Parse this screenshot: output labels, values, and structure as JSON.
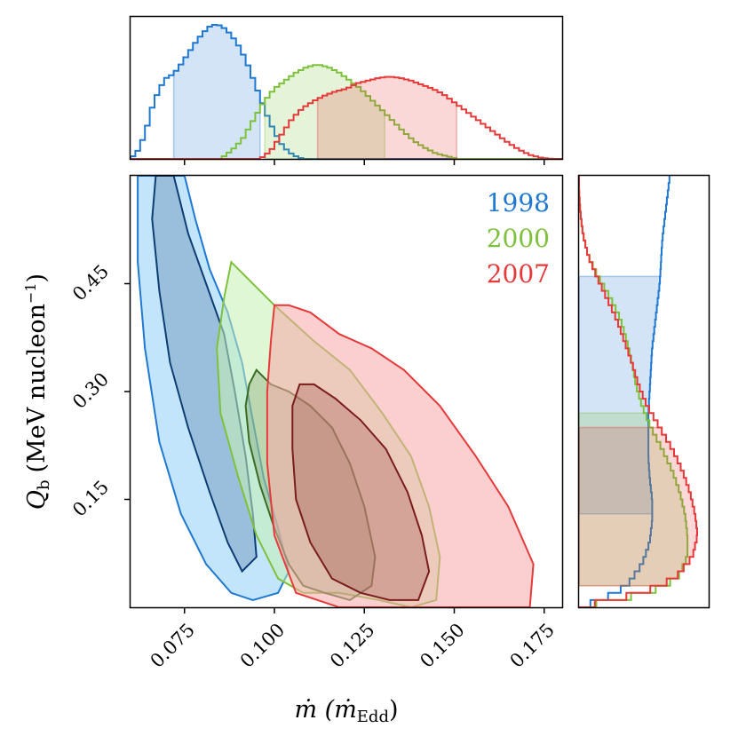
{
  "chart_data": {
    "type": "corner_contour",
    "xlabel": "ṁ (ṁ",
    "xlabel_sub": "Edd",
    "xlabel_close": ")",
    "ylabel": "Q",
    "ylabel_sub": "b",
    "ylabel_unit": "(MeV nucleon",
    "ylabel_sup": "−1",
    "ylabel_close": ")",
    "xlim": [
      0.06,
      0.18
    ],
    "ylim": [
      0.0,
      0.6
    ],
    "xticks": [
      0.075,
      0.1,
      0.125,
      0.15,
      0.175
    ],
    "xtick_labels": [
      "0.075",
      "0.100",
      "0.125",
      "0.150",
      "0.175"
    ],
    "yticks": [
      0.15,
      0.3,
      0.45
    ],
    "ytick_labels": [
      "0.15",
      "0.30",
      "0.45"
    ],
    "series": [
      {
        "name": "1998",
        "color": "#1f78d1",
        "fill": "#8fd0f8",
        "inner_edge": "#0d3d73",
        "x_hist": [
          [
            0.06,
            0.0
          ],
          [
            0.062,
            0.06
          ],
          [
            0.064,
            0.18
          ],
          [
            0.066,
            0.38
          ],
          [
            0.068,
            0.52
          ],
          [
            0.07,
            0.6
          ],
          [
            0.072,
            0.63
          ],
          [
            0.074,
            0.7
          ],
          [
            0.076,
            0.78
          ],
          [
            0.078,
            0.86
          ],
          [
            0.08,
            0.93
          ],
          [
            0.082,
            0.98
          ],
          [
            0.084,
            1.0
          ],
          [
            0.086,
            0.97
          ],
          [
            0.088,
            0.92
          ],
          [
            0.09,
            0.84
          ],
          [
            0.092,
            0.74
          ],
          [
            0.094,
            0.6
          ],
          [
            0.096,
            0.46
          ],
          [
            0.098,
            0.32
          ],
          [
            0.1,
            0.2
          ],
          [
            0.102,
            0.11
          ],
          [
            0.104,
            0.05
          ],
          [
            0.106,
            0.02
          ],
          [
            0.108,
            0.0
          ]
        ],
        "x_band": [
          0.072,
          0.096
        ],
        "y_hist": [
          [
            0.0,
            0.0
          ],
          [
            0.01,
            0.18
          ],
          [
            0.03,
            0.38
          ],
          [
            0.06,
            0.5
          ],
          [
            0.09,
            0.56
          ],
          [
            0.12,
            0.58
          ],
          [
            0.15,
            0.58
          ],
          [
            0.18,
            0.56
          ],
          [
            0.21,
            0.55
          ],
          [
            0.24,
            0.55
          ],
          [
            0.27,
            0.55
          ],
          [
            0.3,
            0.56
          ],
          [
            0.33,
            0.57
          ],
          [
            0.36,
            0.58
          ],
          [
            0.39,
            0.6
          ],
          [
            0.42,
            0.62
          ],
          [
            0.45,
            0.64
          ],
          [
            0.48,
            0.65
          ],
          [
            0.51,
            0.66
          ],
          [
            0.54,
            0.68
          ],
          [
            0.57,
            0.7
          ],
          [
            0.6,
            0.72
          ]
        ],
        "y_band": [
          0.127,
          0.462
        ],
        "outer": [
          [
            0.064,
            0.6
          ],
          [
            0.075,
            0.6
          ],
          [
            0.078,
            0.54
          ],
          [
            0.082,
            0.47
          ],
          [
            0.087,
            0.41
          ],
          [
            0.091,
            0.34
          ],
          [
            0.094,
            0.26
          ],
          [
            0.097,
            0.18
          ],
          [
            0.101,
            0.11
          ],
          [
            0.104,
            0.05
          ],
          [
            0.101,
            0.02
          ],
          [
            0.094,
            0.01
          ],
          [
            0.088,
            0.02
          ],
          [
            0.081,
            0.06
          ],
          [
            0.074,
            0.13
          ],
          [
            0.068,
            0.23
          ],
          [
            0.064,
            0.36
          ],
          [
            0.062,
            0.48
          ],
          [
            0.062,
            0.6
          ]
        ],
        "inner": [
          [
            0.067,
            0.6
          ],
          [
            0.072,
            0.6
          ],
          [
            0.076,
            0.52
          ],
          [
            0.081,
            0.45
          ],
          [
            0.086,
            0.38
          ],
          [
            0.089,
            0.3
          ],
          [
            0.092,
            0.21
          ],
          [
            0.094,
            0.13
          ],
          [
            0.095,
            0.07
          ],
          [
            0.091,
            0.05
          ],
          [
            0.087,
            0.09
          ],
          [
            0.082,
            0.16
          ],
          [
            0.076,
            0.25
          ],
          [
            0.071,
            0.34
          ],
          [
            0.068,
            0.44
          ],
          [
            0.066,
            0.54
          ],
          [
            0.067,
            0.6
          ]
        ]
      },
      {
        "name": "2000",
        "color": "#7ec13c",
        "fill": "#c6f0b4",
        "inner_edge": "#3b6b24",
        "x_hist": [
          [
            0.085,
            0.0
          ],
          [
            0.088,
            0.06
          ],
          [
            0.091,
            0.14
          ],
          [
            0.094,
            0.28
          ],
          [
            0.097,
            0.42
          ],
          [
            0.1,
            0.52
          ],
          [
            0.103,
            0.58
          ],
          [
            0.106,
            0.64
          ],
          [
            0.109,
            0.68
          ],
          [
            0.112,
            0.7
          ],
          [
            0.115,
            0.68
          ],
          [
            0.118,
            0.64
          ],
          [
            0.121,
            0.58
          ],
          [
            0.124,
            0.52
          ],
          [
            0.127,
            0.44
          ],
          [
            0.13,
            0.36
          ],
          [
            0.133,
            0.28
          ],
          [
            0.136,
            0.2
          ],
          [
            0.139,
            0.13
          ],
          [
            0.142,
            0.08
          ],
          [
            0.145,
            0.04
          ],
          [
            0.148,
            0.02
          ],
          [
            0.151,
            0.0
          ]
        ],
        "x_band": [
          0.097,
          0.13
        ],
        "y_hist": [
          [
            0.0,
            0.0
          ],
          [
            0.02,
            0.55
          ],
          [
            0.04,
            0.78
          ],
          [
            0.07,
            0.86
          ],
          [
            0.1,
            0.86
          ],
          [
            0.13,
            0.84
          ],
          [
            0.16,
            0.8
          ],
          [
            0.19,
            0.74
          ],
          [
            0.22,
            0.66
          ],
          [
            0.25,
            0.57
          ],
          [
            0.28,
            0.5
          ],
          [
            0.31,
            0.45
          ],
          [
            0.34,
            0.42
          ],
          [
            0.37,
            0.38
          ],
          [
            0.4,
            0.33
          ],
          [
            0.43,
            0.25
          ],
          [
            0.46,
            0.15
          ],
          [
            0.49,
            0.07
          ],
          [
            0.52,
            0.03
          ],
          [
            0.55,
            0.01
          ],
          [
            0.58,
            0.0
          ]
        ],
        "y_band": [
          0.027,
          0.27
        ],
        "outer": [
          [
            0.088,
            0.48
          ],
          [
            0.092,
            0.46
          ],
          [
            0.1,
            0.42
          ],
          [
            0.111,
            0.37
          ],
          [
            0.121,
            0.33
          ],
          [
            0.13,
            0.27
          ],
          [
            0.138,
            0.21
          ],
          [
            0.143,
            0.14
          ],
          [
            0.146,
            0.07
          ],
          [
            0.145,
            0.01
          ],
          [
            0.138,
            0.0
          ],
          [
            0.129,
            0.01
          ],
          [
            0.118,
            0.02
          ],
          [
            0.108,
            0.02
          ],
          [
            0.101,
            0.04
          ],
          [
            0.095,
            0.1
          ],
          [
            0.09,
            0.18
          ],
          [
            0.085,
            0.27
          ],
          [
            0.084,
            0.36
          ],
          [
            0.086,
            0.43
          ],
          [
            0.088,
            0.48
          ]
        ],
        "inner": [
          [
            0.095,
            0.33
          ],
          [
            0.099,
            0.31
          ],
          [
            0.104,
            0.3
          ],
          [
            0.11,
            0.28
          ],
          [
            0.116,
            0.25
          ],
          [
            0.121,
            0.2
          ],
          [
            0.125,
            0.14
          ],
          [
            0.128,
            0.07
          ],
          [
            0.127,
            0.03
          ],
          [
            0.121,
            0.01
          ],
          [
            0.114,
            0.02
          ],
          [
            0.108,
            0.03
          ],
          [
            0.104,
            0.06
          ],
          [
            0.1,
            0.11
          ],
          [
            0.096,
            0.17
          ],
          [
            0.093,
            0.23
          ],
          [
            0.092,
            0.28
          ],
          [
            0.093,
            0.31
          ],
          [
            0.095,
            0.33
          ]
        ]
      },
      {
        "name": "2007",
        "color": "#e63a3a",
        "fill": "#f7a8a8",
        "inner_edge": "#7a1d1d",
        "x_hist": [
          [
            0.096,
            0.0
          ],
          [
            0.099,
            0.06
          ],
          [
            0.102,
            0.18
          ],
          [
            0.105,
            0.3
          ],
          [
            0.108,
            0.38
          ],
          [
            0.111,
            0.43
          ],
          [
            0.114,
            0.47
          ],
          [
            0.117,
            0.5
          ],
          [
            0.12,
            0.52
          ],
          [
            0.123,
            0.56
          ],
          [
            0.126,
            0.58
          ],
          [
            0.129,
            0.6
          ],
          [
            0.132,
            0.61
          ],
          [
            0.135,
            0.6
          ],
          [
            0.138,
            0.58
          ],
          [
            0.141,
            0.55
          ],
          [
            0.144,
            0.52
          ],
          [
            0.147,
            0.48
          ],
          [
            0.15,
            0.42
          ],
          [
            0.153,
            0.36
          ],
          [
            0.156,
            0.3
          ],
          [
            0.159,
            0.24
          ],
          [
            0.162,
            0.18
          ],
          [
            0.165,
            0.12
          ],
          [
            0.168,
            0.07
          ],
          [
            0.171,
            0.03
          ],
          [
            0.174,
            0.01
          ],
          [
            0.177,
            0.0
          ]
        ],
        "x_band": [
          0.112,
          0.15
        ],
        "y_hist": [
          [
            0.0,
            0.0
          ],
          [
            0.02,
            0.5
          ],
          [
            0.04,
            0.76
          ],
          [
            0.07,
            0.9
          ],
          [
            0.1,
            0.94
          ],
          [
            0.13,
            0.92
          ],
          [
            0.16,
            0.88
          ],
          [
            0.19,
            0.82
          ],
          [
            0.22,
            0.74
          ],
          [
            0.25,
            0.64
          ],
          [
            0.28,
            0.54
          ],
          [
            0.31,
            0.47
          ],
          [
            0.34,
            0.42
          ],
          [
            0.37,
            0.36
          ],
          [
            0.4,
            0.3
          ],
          [
            0.43,
            0.22
          ],
          [
            0.46,
            0.14
          ],
          [
            0.49,
            0.07
          ],
          [
            0.52,
            0.03
          ],
          [
            0.55,
            0.01
          ],
          [
            0.58,
            0.0
          ]
        ],
        "y_band": [
          0.033,
          0.252
        ],
        "outer": [
          [
            0.1,
            0.42
          ],
          [
            0.104,
            0.42
          ],
          [
            0.11,
            0.41
          ],
          [
            0.118,
            0.38
          ],
          [
            0.127,
            0.36
          ],
          [
            0.136,
            0.33
          ],
          [
            0.146,
            0.28
          ],
          [
            0.156,
            0.21
          ],
          [
            0.165,
            0.14
          ],
          [
            0.172,
            0.06
          ],
          [
            0.171,
            0.0
          ],
          [
            0.158,
            0.0
          ],
          [
            0.145,
            0.0
          ],
          [
            0.132,
            0.0
          ],
          [
            0.118,
            0.0
          ],
          [
            0.106,
            0.02
          ],
          [
            0.1,
            0.1
          ],
          [
            0.098,
            0.2
          ],
          [
            0.098,
            0.3
          ],
          [
            0.099,
            0.37
          ],
          [
            0.1,
            0.42
          ]
        ],
        "inner": [
          [
            0.107,
            0.31
          ],
          [
            0.111,
            0.31
          ],
          [
            0.117,
            0.29
          ],
          [
            0.124,
            0.26
          ],
          [
            0.131,
            0.22
          ],
          [
            0.137,
            0.16
          ],
          [
            0.141,
            0.1
          ],
          [
            0.143,
            0.05
          ],
          [
            0.14,
            0.01
          ],
          [
            0.132,
            0.01
          ],
          [
            0.124,
            0.02
          ],
          [
            0.116,
            0.04
          ],
          [
            0.11,
            0.09
          ],
          [
            0.106,
            0.15
          ],
          [
            0.105,
            0.22
          ],
          [
            0.105,
            0.28
          ],
          [
            0.107,
            0.31
          ]
        ]
      }
    ]
  }
}
